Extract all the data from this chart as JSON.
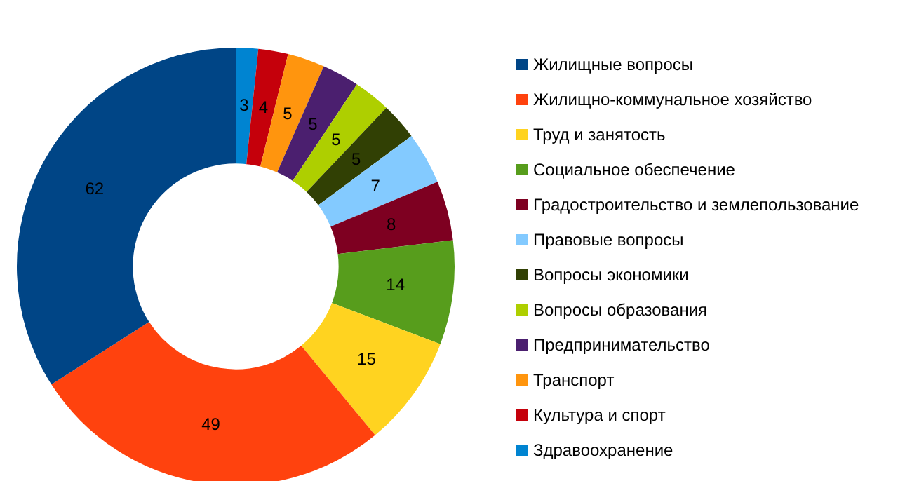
{
  "chart_data": {
    "type": "donut",
    "categories": [
      "Жилищные вопросы",
      "Жилищно-коммунальное хозяйство",
      "Труд и занятость",
      "Социальное обеспечение",
      "Градостроительство и землепользование",
      "Правовые вопросы",
      "Вопросы экономики",
      "Вопросы образования",
      "Предпринимательство",
      "Транспорт",
      "Культура и спорт",
      "Здравоохранение"
    ],
    "values": [
      62,
      49,
      15,
      14,
      8,
      7,
      5,
      5,
      5,
      5,
      4,
      3
    ],
    "colors": [
      "#004586",
      "#ff420e",
      "#ffd320",
      "#579d1c",
      "#7e0021",
      "#83caff",
      "#314004",
      "#aecf00",
      "#4b1f6f",
      "#ff950e",
      "#c5000b",
      "#0084d1"
    ],
    "data_labels": true,
    "legend": "right"
  }
}
